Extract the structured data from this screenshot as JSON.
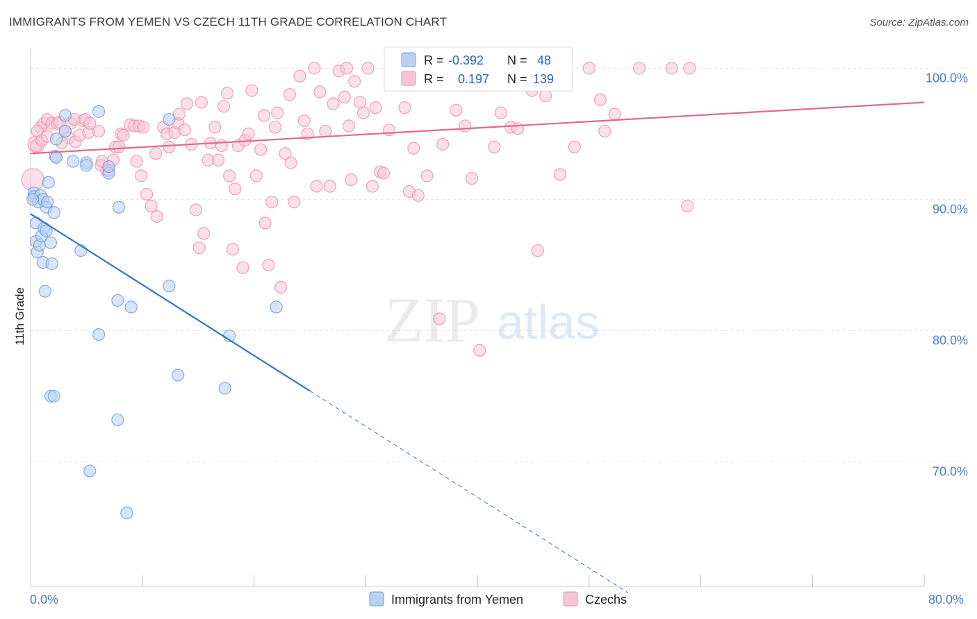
{
  "title": "IMMIGRANTS FROM YEMEN VS CZECH 11TH GRADE CORRELATION CHART",
  "source": "Source: ZipAtlas.com",
  "watermark": {
    "zip": "ZIP",
    "atlas": "atlas"
  },
  "colors": {
    "blue": "#6d9fe0",
    "blue_fill": "#b8d0f2",
    "blue_line": "#2f74d0",
    "pink": "#ee8fb0",
    "pink_fill": "#f6c6d6",
    "pink_line": "#e06894",
    "tick": "#4a7cc9",
    "grid": "#e4e4e4"
  },
  "legend_box": {
    "rows": [
      {
        "r_label": "R =",
        "r_value": "-0.392",
        "n_label": "N =",
        "n_value": "48"
      },
      {
        "r_label": "R =",
        "r_value": "0.197",
        "n_label": "N =",
        "n_value": "139"
      }
    ]
  },
  "bottom_legend": [
    "Immigrants from Yemen",
    "Czechs"
  ],
  "chart_data": {
    "type": "scatter",
    "title": "IMMIGRANTS FROM YEMEN VS CZECH 11TH GRADE CORRELATION CHART",
    "xlabel": "",
    "ylabel": "11th Grade",
    "xlim": [
      0,
      80
    ],
    "ylim": [
      60.5,
      101.5
    ],
    "x_tick_labels": [
      "0.0%",
      "80.0%"
    ],
    "y_ticks": [
      70,
      80,
      90,
      100
    ],
    "y_tick_labels": [
      "70.0%",
      "80.0%",
      "90.0%",
      "100.0%"
    ],
    "grid": true,
    "legend_position": "bottom",
    "series": [
      {
        "name": "Immigrants from Yemen",
        "stats": {
          "R": -0.392,
          "N": 48
        },
        "trend": {
          "x0": 0,
          "y0": 88.9,
          "x1": 25,
          "y1": 75.4,
          "dashed_to_x": 53.5
        },
        "points": [
          [
            0.3,
            90.5
          ],
          [
            0.3,
            90.2
          ],
          [
            0.5,
            88.2
          ],
          [
            0.5,
            86.8
          ],
          [
            0.6,
            86.0
          ],
          [
            0.7,
            89.8
          ],
          [
            0.8,
            86.5
          ],
          [
            0.9,
            90.3
          ],
          [
            1.0,
            87.2
          ],
          [
            1.1,
            85.2
          ],
          [
            1.1,
            90.0
          ],
          [
            1.2,
            87.8
          ],
          [
            1.3,
            83.0
          ],
          [
            1.4,
            87.6
          ],
          [
            1.4,
            89.4
          ],
          [
            1.5,
            89.8
          ],
          [
            1.6,
            91.3
          ],
          [
            1.8,
            86.7
          ],
          [
            1.8,
            75.0
          ],
          [
            1.9,
            85.1
          ],
          [
            2.1,
            75.0
          ],
          [
            2.1,
            89.0
          ],
          [
            2.2,
            93.3
          ],
          [
            2.3,
            94.6
          ],
          [
            2.3,
            93.2
          ],
          [
            3.1,
            95.2
          ],
          [
            3.1,
            96.4
          ],
          [
            3.8,
            92.9
          ],
          [
            4.5,
            86.1
          ],
          [
            5.0,
            92.8
          ],
          [
            5.0,
            92.6
          ],
          [
            5.3,
            69.3
          ],
          [
            6.1,
            96.7
          ],
          [
            6.1,
            79.7
          ],
          [
            7.0,
            92.0
          ],
          [
            7.0,
            92.5
          ],
          [
            7.8,
            82.3
          ],
          [
            7.8,
            73.2
          ],
          [
            7.9,
            89.4
          ],
          [
            8.6,
            66.1
          ],
          [
            9.0,
            81.8
          ],
          [
            12.4,
            96.1
          ],
          [
            12.4,
            83.4
          ],
          [
            13.2,
            76.6
          ],
          [
            17.4,
            75.6
          ],
          [
            17.8,
            79.6
          ],
          [
            22.0,
            81.8
          ],
          [
            0.2,
            90.0
          ]
        ]
      },
      {
        "name": "Czechs",
        "stats": {
          "R": 0.197,
          "N": 139
        },
        "trend": {
          "x0": 0,
          "y0": 93.5,
          "x1": 80,
          "y1": 97.4
        },
        "points": [
          [
            0.2,
            91.5
          ],
          [
            0.5,
            94.2
          ],
          [
            0.9,
            95.5
          ],
          [
            1.2,
            95.8
          ],
          [
            1.5,
            96.1
          ],
          [
            1.9,
            95.8
          ],
          [
            2.4,
            95.8
          ],
          [
            2.6,
            95.9
          ],
          [
            3.1,
            95.2
          ],
          [
            3.4,
            94.7
          ],
          [
            3.6,
            95.8
          ],
          [
            4.0,
            94.4
          ],
          [
            4.4,
            94.9
          ],
          [
            4.7,
            96.0
          ],
          [
            4.9,
            96.1
          ],
          [
            5.2,
            95.1
          ],
          [
            5.3,
            95.8
          ],
          [
            6.1,
            95.2
          ],
          [
            6.3,
            92.6
          ],
          [
            6.4,
            92.9
          ],
          [
            6.8,
            92.2
          ],
          [
            7.0,
            92.2
          ],
          [
            7.4,
            93.0
          ],
          [
            7.6,
            94.0
          ],
          [
            7.9,
            94.0
          ],
          [
            8.1,
            95.0
          ],
          [
            8.3,
            94.9
          ],
          [
            8.9,
            95.7
          ],
          [
            9.3,
            95.6
          ],
          [
            9.5,
            92.9
          ],
          [
            9.7,
            95.6
          ],
          [
            9.9,
            91.8
          ],
          [
            10.1,
            95.5
          ],
          [
            10.4,
            90.4
          ],
          [
            10.8,
            89.5
          ],
          [
            11.2,
            93.5
          ],
          [
            11.3,
            88.7
          ],
          [
            11.9,
            95.5
          ],
          [
            12.2,
            95.0
          ],
          [
            12.4,
            94.0
          ],
          [
            12.9,
            95.1
          ],
          [
            13.2,
            95.8
          ],
          [
            13.3,
            96.5
          ],
          [
            13.8,
            95.3
          ],
          [
            14.0,
            97.3
          ],
          [
            14.4,
            94.2
          ],
          [
            14.8,
            89.2
          ],
          [
            15.1,
            86.3
          ],
          [
            15.3,
            97.4
          ],
          [
            15.5,
            87.4
          ],
          [
            15.9,
            93.0
          ],
          [
            16.1,
            94.3
          ],
          [
            16.5,
            95.5
          ],
          [
            16.8,
            93.0
          ],
          [
            17.1,
            94.1
          ],
          [
            17.3,
            97.1
          ],
          [
            17.6,
            98.1
          ],
          [
            17.8,
            91.8
          ],
          [
            18.1,
            86.2
          ],
          [
            18.3,
            90.8
          ],
          [
            18.6,
            94.1
          ],
          [
            19.0,
            84.8
          ],
          [
            19.2,
            94.5
          ],
          [
            19.5,
            95.0
          ],
          [
            19.8,
            98.3
          ],
          [
            20.2,
            91.8
          ],
          [
            20.6,
            93.8
          ],
          [
            20.9,
            96.4
          ],
          [
            21.3,
            85.0
          ],
          [
            21.6,
            89.8
          ],
          [
            21.9,
            95.5
          ],
          [
            22.1,
            96.6
          ],
          [
            22.4,
            83.3
          ],
          [
            22.8,
            93.5
          ],
          [
            23.2,
            98.0
          ],
          [
            23.3,
            92.8
          ],
          [
            23.6,
            89.8
          ],
          [
            24.1,
            99.4
          ],
          [
            24.5,
            96.0
          ],
          [
            24.8,
            95.0
          ],
          [
            25.4,
            100.0
          ],
          [
            25.6,
            91.0
          ],
          [
            25.9,
            98.2
          ],
          [
            26.4,
            95.2
          ],
          [
            26.8,
            91.0
          ],
          [
            27.1,
            97.3
          ],
          [
            27.6,
            99.8
          ],
          [
            28.1,
            97.8
          ],
          [
            28.3,
            100.0
          ],
          [
            28.5,
            95.6
          ],
          [
            28.7,
            91.5
          ],
          [
            29.0,
            99.0
          ],
          [
            29.5,
            97.4
          ],
          [
            29.8,
            96.6
          ],
          [
            30.2,
            100.0
          ],
          [
            30.6,
            91.0
          ],
          [
            30.9,
            97.0
          ],
          [
            31.3,
            92.1
          ],
          [
            31.6,
            92.0
          ],
          [
            32.1,
            95.3
          ],
          [
            32.3,
            98.9
          ],
          [
            33.1,
            99.4
          ],
          [
            33.5,
            97.0
          ],
          [
            33.9,
            90.6
          ],
          [
            34.3,
            93.9
          ],
          [
            34.7,
            90.3
          ],
          [
            35.5,
            91.8
          ],
          [
            36.1,
            99.3
          ],
          [
            36.6,
            80.9
          ],
          [
            36.9,
            94.2
          ],
          [
            37.5,
            99.7
          ],
          [
            38.1,
            96.8
          ],
          [
            38.9,
            95.6
          ],
          [
            39.5,
            91.6
          ],
          [
            40.2,
            78.5
          ],
          [
            41.0,
            99.5
          ],
          [
            41.5,
            94.0
          ],
          [
            42.1,
            96.6
          ],
          [
            43.0,
            95.5
          ],
          [
            43.6,
            95.4
          ],
          [
            44.1,
            100.0
          ],
          [
            45.4,
            86.1
          ],
          [
            45.9,
            99.2
          ],
          [
            46.1,
            97.9
          ],
          [
            46.8,
            100.0
          ],
          [
            47.4,
            91.9
          ],
          [
            48.7,
            94.0
          ],
          [
            50.0,
            100.0
          ],
          [
            51.4,
            95.2
          ],
          [
            52.3,
            96.5
          ],
          [
            54.5,
            100.0
          ],
          [
            57.4,
            100.0
          ],
          [
            58.8,
            89.5
          ],
          [
            59.0,
            100.0
          ],
          [
            51.0,
            97.6
          ],
          [
            0.5,
            94.1
          ],
          [
            0.6,
            95.2
          ],
          [
            1.0,
            94.5
          ],
          [
            1.5,
            94.8
          ],
          [
            2.8,
            94.3
          ],
          [
            3.9,
            96.1
          ],
          [
            44.9,
            98.3
          ],
          [
            21.0,
            88.2
          ]
        ]
      }
    ]
  }
}
